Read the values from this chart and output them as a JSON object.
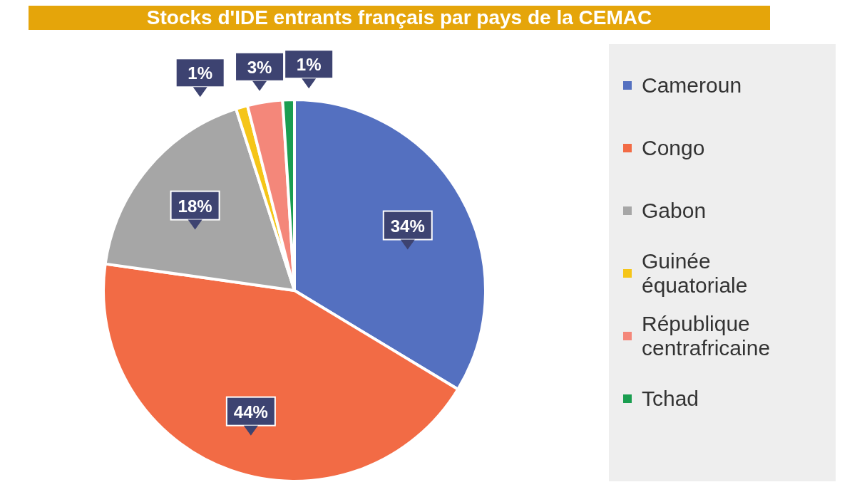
{
  "chart_data": {
    "type": "pie",
    "title": "Stocks d'IDE entrants français par pays de la CEMAC",
    "categories": [
      "Cameroun",
      "Congo",
      "Gabon",
      "Guinée équatoriale",
      "République centrafricaine",
      "Tchad"
    ],
    "values": [
      34,
      44,
      18,
      1,
      3,
      1
    ],
    "colors": [
      "#5470c0",
      "#f26b45",
      "#a6a6a6",
      "#f5c518",
      "#f4877a",
      "#1a9e50"
    ],
    "value_labels": [
      "34%",
      "44%",
      "18%",
      "1%",
      "3%",
      "1%"
    ],
    "legend": "right"
  }
}
